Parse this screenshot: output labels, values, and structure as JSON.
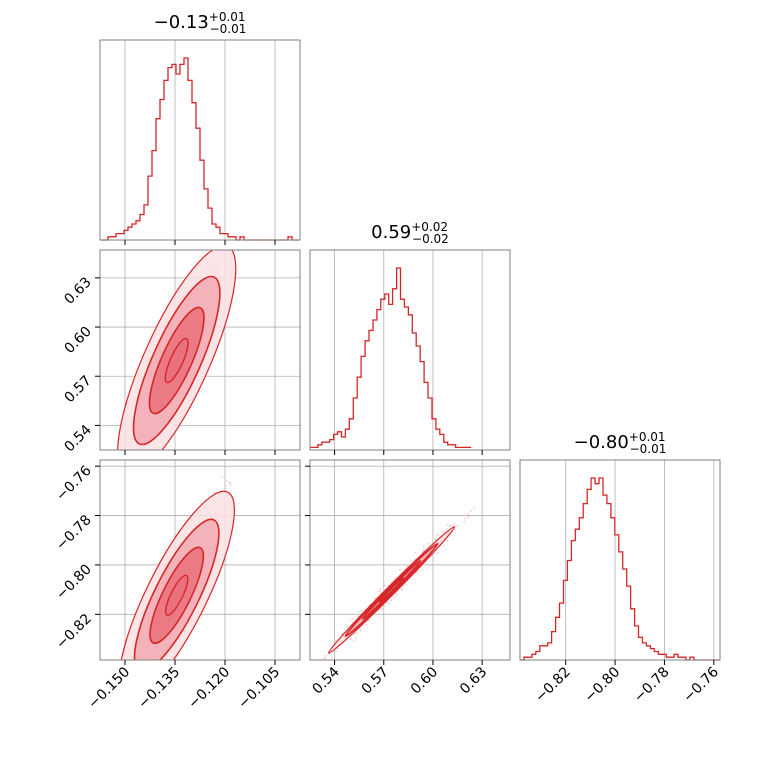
{
  "colors": {
    "main": "#d62728",
    "fill_inner": "#e9707b",
    "fill_mid": "#f2aab1",
    "fill_outer": "#fbe1e3",
    "scatter": "#f4b6bb",
    "grid": "#b0b0b0",
    "frame": "#808080"
  },
  "chart_data": {
    "type": "corner",
    "parameters": [
      {
        "title": {
          "median": "−0.13",
          "plus": "+0.01",
          "minus": "−0.01"
        },
        "range": [
          -0.1575,
          -0.0975
        ],
        "ticks": [
          -0.15,
          -0.135,
          -0.12,
          -0.105
        ],
        "tick_labels": [
          "−0.150",
          "−0.135",
          "−0.120",
          "−0.105"
        ],
        "hist_start": -0.1575,
        "hist_bin": 0.0012,
        "hist": [
          0,
          0,
          1,
          1,
          2,
          2,
          3,
          4,
          5,
          6,
          8,
          11,
          20,
          28,
          38,
          44,
          50,
          54,
          55,
          52,
          55,
          57,
          50,
          43,
          35,
          25,
          16,
          10,
          5,
          4,
          2,
          2,
          1,
          1,
          0,
          1,
          0,
          0,
          0,
          0,
          0,
          0,
          0,
          0,
          0,
          0,
          0,
          1,
          0,
          0
        ]
      },
      {
        "title": {
          "median": "0.59",
          "plus": "+0.02",
          "minus": "−0.02"
        },
        "range": [
          0.525,
          0.647
        ],
        "ticks": [
          0.54,
          0.57,
          0.6,
          0.63
        ],
        "tick_labels": [
          "0.54",
          "0.57",
          "0.60",
          "0.63"
        ],
        "hist_start": 0.525,
        "hist_bin": 0.0024,
        "hist": [
          1,
          1,
          2,
          3,
          3,
          4,
          6,
          7,
          5,
          8,
          12,
          20,
          28,
          36,
          42,
          46,
          50,
          54,
          58,
          60,
          56,
          62,
          70,
          58,
          55,
          52,
          45,
          40,
          34,
          26,
          20,
          12,
          8,
          6,
          3,
          2,
          2,
          1,
          1,
          1,
          1
        ]
      },
      {
        "title": {
          "median": "−0.80",
          "plus": "+0.01",
          "minus": "−0.01"
        },
        "range": [
          -0.8385,
          -0.7575
        ],
        "ticks": [
          -0.82,
          -0.8,
          -0.78,
          -0.76
        ],
        "tick_labels": [
          "−0.82",
          "−0.80",
          "−0.78",
          "−0.76"
        ],
        "hist_start": -0.8385,
        "hist_bin": 0.0016,
        "hist": [
          0,
          1,
          1,
          2,
          3,
          5,
          5,
          6,
          10,
          15,
          20,
          28,
          35,
          42,
          46,
          50,
          55,
          60,
          64,
          62,
          64,
          58,
          55,
          50,
          44,
          38,
          32,
          26,
          18,
          12,
          8,
          6,
          5,
          4,
          3,
          2,
          2,
          1,
          1,
          2,
          1,
          1,
          0,
          1,
          0,
          0,
          0,
          0,
          0,
          0,
          0
        ]
      }
    ],
    "correlations": [
      {
        "x": 0,
        "y": 1,
        "slope": 4.545,
        "intercept": 1.1909
      },
      {
        "x": 0,
        "y": 2,
        "slope": 2.727,
        "intercept": -0.4455
      },
      {
        "x": 1,
        "y": 2,
        "slope": 0.6667,
        "intercept": -1.1933
      }
    ],
    "grid": true
  }
}
